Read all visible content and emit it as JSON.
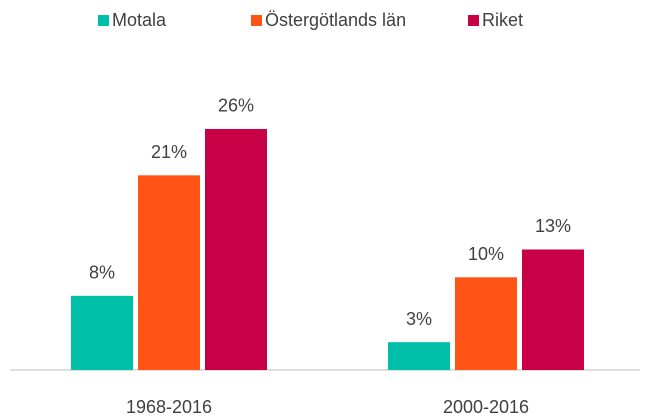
{
  "chart_data": {
    "type": "bar",
    "categories": [
      "1968-2016",
      "2000-2016"
    ],
    "series": [
      {
        "name": "Motala",
        "color": "#00bfa8",
        "values": [
          8,
          3
        ],
        "value_labels": [
          "8%",
          "3%"
        ]
      },
      {
        "name": "Östergötlands län",
        "color": "#ff5416",
        "values": [
          21,
          10
        ],
        "value_labels": [
          "21%",
          "10%"
        ]
      },
      {
        "name": "Riket",
        "color": "#c80046",
        "values": [
          26,
          13
        ],
        "value_labels": [
          "26%",
          "13%"
        ]
      }
    ],
    "legend": "top"
  }
}
